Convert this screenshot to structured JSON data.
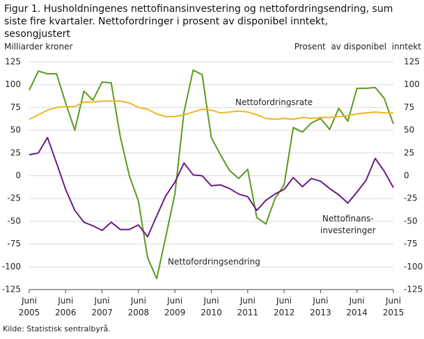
{
  "chart_data": {
    "type": "line",
    "title": "Figur 1. Husholdningenes nettofinansinvestering og nettofordringsendring, sum siste fire kvartaler. Nettofordringer i prosent av disponibel inntekt, sesongjustert",
    "y_label": "Milliarder  kroner",
    "y2_label": "Prosent  av disponibel  inntekt",
    "source": "Kilde: Statistisk sentralbyrå.",
    "categories": [
      "Juni 2005",
      null,
      null,
      null,
      "Juni 2006",
      null,
      null,
      null,
      "Juni 2007",
      null,
      null,
      null,
      "Juni 2008",
      null,
      null,
      null,
      "Juni 2009",
      null,
      null,
      null,
      "Juni 2010",
      null,
      null,
      null,
      "Juni 2011",
      null,
      null,
      null,
      "Juni 2012",
      null,
      null,
      null,
      "Juni 2013",
      null,
      null,
      null,
      "Juni 2014",
      null,
      null,
      null,
      "Juni 2015"
    ],
    "ylim": [
      -125,
      125
    ],
    "yticks": [
      -125,
      -100,
      -75,
      -50,
      -25,
      0,
      25,
      50,
      75,
      100,
      125
    ],
    "y2lim": [
      -125,
      125
    ],
    "y2ticks": [
      -125,
      -100,
      -75,
      -50,
      -25,
      0,
      25,
      50,
      75,
      100,
      125
    ],
    "grid": true,
    "series": [
      {
        "name": "Nettofordringsendring",
        "color": "#5a9a1e",
        "values": [
          94,
          115,
          112,
          112,
          80,
          50,
          93,
          83,
          103,
          102,
          43,
          0,
          -28,
          -90,
          -113,
          -67,
          -20,
          70,
          116,
          111,
          42,
          23,
          6,
          -3,
          7,
          -46,
          -53,
          -25,
          -10,
          53,
          48,
          58,
          63,
          51,
          74,
          60,
          96,
          96,
          97,
          85,
          57
        ]
      },
      {
        "name": "Nettofinans-\ninvesteringer",
        "color": "#6a1a83",
        "values": [
          23,
          25,
          42,
          14,
          -15,
          -38,
          -51,
          -55,
          -60,
          -51,
          -59,
          -59,
          -54,
          -67,
          -44,
          -22,
          -7,
          14,
          1,
          0,
          -11,
          -10,
          -14,
          -20,
          -23,
          -38,
          -27,
          -20,
          -15,
          -2,
          -12,
          -3,
          -6,
          -14,
          -21,
          -30,
          -18,
          -5,
          19,
          5,
          -13
        ]
      },
      {
        "name": "Nettofordringsrate",
        "color": "#f0b323",
        "axis": "y2",
        "values": [
          62,
          67,
          72,
          75,
          76,
          76,
          81,
          81,
          82,
          82,
          82,
          80,
          75,
          73,
          68,
          65,
          65,
          67,
          70,
          73,
          72,
          69,
          70,
          71,
          70,
          67,
          63,
          62,
          63,
          62,
          64,
          63,
          64,
          64,
          65,
          66,
          68,
          69,
          70,
          69,
          69
        ]
      }
    ]
  }
}
